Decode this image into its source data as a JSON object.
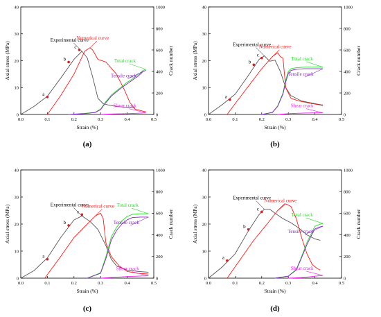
{
  "colors": {
    "experimental": "#555555",
    "numerical": "#ff1a1a",
    "total": "#22dd22",
    "tensile": "#8a22cc",
    "shear": "#ee22ee",
    "points": "#cc2222",
    "axis": "#000000"
  },
  "chart_data": [
    {
      "panel": "(a)",
      "type": "line",
      "xlabel": "Strain (%)",
      "ylabel": "Axial stress (MPa)",
      "y2label": "Crack number",
      "xlim": [
        0.0,
        0.5
      ],
      "ylim": [
        0,
        40
      ],
      "y2lim": [
        0,
        1000
      ],
      "xticks": [
        "0.0",
        "0.1",
        "0.2",
        "0.3",
        "0.4",
        "0.5"
      ],
      "yticks": [
        "0",
        "10",
        "20",
        "30",
        "40"
      ],
      "y2ticks": [
        "0",
        "200",
        "400",
        "600",
        "800",
        "1000"
      ],
      "series": [
        {
          "name": "Experimental curve",
          "axis": "left",
          "color_key": "experimental",
          "x": [
            0.0,
            0.05,
            0.1,
            0.15,
            0.2,
            0.23,
            0.25,
            0.27,
            0.29,
            0.31,
            0.33,
            0.36,
            0.4,
            0.43
          ],
          "y": [
            0.0,
            3.0,
            6.8,
            13.5,
            20.5,
            23.5,
            21.0,
            14.0,
            6.0,
            4.0,
            3.5,
            3.0,
            2.6,
            2.4
          ]
        },
        {
          "name": "Numerical curve",
          "axis": "left",
          "color_key": "numerical",
          "x": [
            0.1,
            0.15,
            0.2,
            0.24,
            0.26,
            0.27,
            0.29,
            0.32,
            0.36,
            0.39,
            0.41,
            0.43,
            0.46,
            0.47
          ],
          "y": [
            0.0,
            7.0,
            15.0,
            23.5,
            24.8,
            24.0,
            20.5,
            19.5,
            15.0,
            9.0,
            4.5,
            2.0,
            1.2,
            1.0
          ]
        },
        {
          "name": "Total crack",
          "axis": "right",
          "color_key": "total",
          "x": [
            0.18,
            0.24,
            0.28,
            0.3,
            0.32,
            0.34,
            0.36,
            0.38,
            0.4,
            0.42,
            0.44,
            0.46,
            0.47
          ],
          "y": [
            0,
            10,
            20,
            50,
            120,
            180,
            220,
            260,
            300,
            330,
            370,
            410,
            420
          ]
        },
        {
          "name": "Tensile crack",
          "axis": "right",
          "color_key": "tensile",
          "x": [
            0.18,
            0.24,
            0.28,
            0.3,
            0.32,
            0.34,
            0.36,
            0.38,
            0.4,
            0.42,
            0.44,
            0.46,
            0.47
          ],
          "y": [
            0,
            8,
            18,
            45,
            110,
            170,
            210,
            250,
            285,
            320,
            355,
            400,
            410
          ]
        },
        {
          "name": "Shear crack",
          "axis": "right",
          "color_key": "shear",
          "x": [
            0.3,
            0.35,
            0.4,
            0.45,
            0.47
          ],
          "y": [
            0,
            5,
            8,
            12,
            15
          ]
        }
      ],
      "points": [
        {
          "label": "a",
          "x": 0.1,
          "y": 6.5
        },
        {
          "label": "b",
          "x": 0.18,
          "y": 19.5
        },
        {
          "label": "c",
          "x": 0.22,
          "y": 24.0
        }
      ]
    },
    {
      "panel": "(b)",
      "type": "line",
      "xlabel": "Strain (%)",
      "ylabel": "Axial stress (MPa)",
      "y2label": "Crack number",
      "xlim": [
        0.0,
        0.5
      ],
      "ylim": [
        0,
        40
      ],
      "y2lim": [
        0,
        1000
      ],
      "xticks": [
        "0.0",
        "0.1",
        "0.2",
        "0.3",
        "0.4",
        "0.5"
      ],
      "yticks": [
        "0",
        "10",
        "20",
        "30",
        "40"
      ],
      "y2ticks": [
        "0",
        "200",
        "400",
        "600",
        "800",
        "1000"
      ],
      "series": [
        {
          "name": "Experimental curve",
          "axis": "left",
          "color_key": "experimental",
          "x": [
            0.0,
            0.05,
            0.1,
            0.15,
            0.19,
            0.21,
            0.23,
            0.25,
            0.27,
            0.29,
            0.31,
            0.35,
            0.4,
            0.43
          ],
          "y": [
            0.0,
            3.5,
            7.5,
            14.5,
            20.5,
            21.8,
            19.8,
            20.2,
            16.0,
            10.0,
            7.0,
            5.0,
            4.0,
            3.5
          ]
        },
        {
          "name": "Numerical curve",
          "axis": "left",
          "color_key": "numerical",
          "x": [
            0.07,
            0.1,
            0.15,
            0.2,
            0.24,
            0.26,
            0.27,
            0.28,
            0.29,
            0.31,
            0.34,
            0.38,
            0.42,
            0.43
          ],
          "y": [
            0.0,
            4.0,
            10.5,
            17.0,
            21.5,
            23.0,
            21.5,
            21.0,
            10.0,
            6.0,
            5.0,
            4.2,
            3.5,
            3.3
          ]
        },
        {
          "name": "Total crack",
          "axis": "right",
          "color_key": "total",
          "x": [
            0.2,
            0.24,
            0.26,
            0.28,
            0.29,
            0.3,
            0.31,
            0.33,
            0.36,
            0.4,
            0.43
          ],
          "y": [
            0,
            20,
            80,
            200,
            320,
            400,
            425,
            435,
            440,
            440,
            440
          ]
        },
        {
          "name": "Tensile crack",
          "axis": "right",
          "color_key": "tensile",
          "x": [
            0.2,
            0.24,
            0.26,
            0.28,
            0.29,
            0.3,
            0.31,
            0.33,
            0.36,
            0.4,
            0.43
          ],
          "y": [
            0,
            18,
            75,
            190,
            300,
            380,
            410,
            420,
            425,
            425,
            425
          ]
        },
        {
          "name": "Shear crack",
          "axis": "right",
          "color_key": "shear",
          "x": [
            0.26,
            0.3,
            0.35,
            0.4,
            0.43
          ],
          "y": [
            0,
            8,
            12,
            15,
            15
          ]
        }
      ],
      "points": [
        {
          "label": "a",
          "x": 0.08,
          "y": 5.5
        },
        {
          "label": "b",
          "x": 0.17,
          "y": 18.5
        },
        {
          "label": "c",
          "x": 0.2,
          "y": 21.0
        }
      ]
    },
    {
      "panel": "(c)",
      "type": "line",
      "xlabel": "Strain (%)",
      "ylabel": "Axial stress (MPa)",
      "y2label": "Crack number",
      "xlim": [
        0.0,
        0.5
      ],
      "ylim": [
        0,
        40
      ],
      "y2lim": [
        0,
        1000
      ],
      "xticks": [
        "0.0",
        "0.1",
        "0.2",
        "0.3",
        "0.4",
        "0.5"
      ],
      "yticks": [
        "0",
        "10",
        "20",
        "30",
        "40"
      ],
      "y2ticks": [
        "0",
        "200",
        "400",
        "600",
        "800",
        "1000"
      ],
      "series": [
        {
          "name": "Experimental curve",
          "axis": "left",
          "color_key": "experimental",
          "x": [
            0.0,
            0.05,
            0.1,
            0.15,
            0.2,
            0.23,
            0.26,
            0.29,
            0.32,
            0.34,
            0.36,
            0.4,
            0.44,
            0.48
          ],
          "y": [
            0.0,
            2.8,
            7.5,
            15.0,
            21.5,
            23.0,
            21.0,
            18.0,
            12.0,
            7.0,
            4.5,
            3.0,
            2.5,
            2.2
          ]
        },
        {
          "name": "Numerical curve",
          "axis": "left",
          "color_key": "numerical",
          "x": [
            0.09,
            0.15,
            0.2,
            0.25,
            0.28,
            0.3,
            0.31,
            0.32,
            0.34,
            0.37,
            0.4,
            0.44,
            0.48
          ],
          "y": [
            0.0,
            8.0,
            15.0,
            20.0,
            23.0,
            24.0,
            22.0,
            13.0,
            8.0,
            4.5,
            2.5,
            1.8,
            1.5
          ]
        },
        {
          "name": "Total crack",
          "axis": "right",
          "color_key": "total",
          "x": [
            0.25,
            0.3,
            0.32,
            0.34,
            0.36,
            0.38,
            0.4,
            0.42,
            0.45,
            0.48
          ],
          "y": [
            0,
            50,
            200,
            380,
            470,
            530,
            570,
            590,
            595,
            595
          ]
        },
        {
          "name": "Tensile crack",
          "axis": "right",
          "color_key": "tensile",
          "x": [
            0.25,
            0.3,
            0.32,
            0.34,
            0.36,
            0.38,
            0.4,
            0.42,
            0.45,
            0.48
          ],
          "y": [
            0,
            45,
            180,
            350,
            440,
            500,
            540,
            560,
            565,
            565
          ]
        },
        {
          "name": "Shear crack",
          "axis": "right",
          "color_key": "shear",
          "x": [
            0.3,
            0.35,
            0.4,
            0.45,
            0.48
          ],
          "y": [
            0,
            8,
            15,
            20,
            22
          ]
        }
      ],
      "points": [
        {
          "label": "a",
          "x": 0.1,
          "y": 7.0
        },
        {
          "label": "b",
          "x": 0.18,
          "y": 19.5
        },
        {
          "label": "c",
          "x": 0.23,
          "y": 23.5
        }
      ]
    },
    {
      "panel": "(d)",
      "type": "line",
      "xlabel": "Strain (%)",
      "ylabel": "Axial stress (MPa)",
      "y2label": "Crack number",
      "xlim": [
        0.0,
        0.5
      ],
      "ylim": [
        0,
        40
      ],
      "y2lim": [
        0,
        1000
      ],
      "xticks": [
        "0.0",
        "0.1",
        "0.2",
        "0.3",
        "0.4",
        "0.5"
      ],
      "yticks": [
        "0",
        "10",
        "20",
        "30",
        "40"
      ],
      "y2ticks": [
        "0",
        "200",
        "400",
        "600",
        "800",
        "1000"
      ],
      "series": [
        {
          "name": "Experimental curve",
          "axis": "left",
          "color_key": "experimental",
          "x": [
            0.0,
            0.05,
            0.1,
            0.15,
            0.19,
            0.21,
            0.23,
            0.25,
            0.28,
            0.31,
            0.34,
            0.37,
            0.4,
            0.42
          ],
          "y": [
            0.0,
            4.0,
            9.0,
            17.5,
            23.5,
            25.5,
            25.5,
            24.0,
            22.0,
            20.5,
            18.5,
            16.0,
            14.5,
            14.0
          ]
        },
        {
          "name": "Numerical curve",
          "axis": "left",
          "color_key": "numerical",
          "x": [
            0.07,
            0.12,
            0.17,
            0.22,
            0.26,
            0.29,
            0.31,
            0.33,
            0.35,
            0.37,
            0.39,
            0.41,
            0.42
          ],
          "y": [
            0.0,
            7.0,
            14.0,
            20.0,
            25.0,
            27.5,
            26.5,
            22.0,
            15.0,
            9.0,
            5.0,
            3.5,
            3.0
          ]
        },
        {
          "name": "Total crack",
          "axis": "right",
          "color_key": "total",
          "x": [
            0.25,
            0.3,
            0.33,
            0.35,
            0.37,
            0.39,
            0.4,
            0.42,
            0.43
          ],
          "y": [
            0,
            20,
            80,
            200,
            330,
            430,
            480,
            500,
            505
          ]
        },
        {
          "name": "Tensile crack",
          "axis": "right",
          "color_key": "tensile",
          "x": [
            0.25,
            0.3,
            0.33,
            0.35,
            0.37,
            0.39,
            0.4,
            0.42,
            0.43
          ],
          "y": [
            0,
            18,
            75,
            190,
            310,
            410,
            455,
            475,
            480
          ]
        },
        {
          "name": "Shear crack",
          "axis": "right",
          "color_key": "shear",
          "x": [
            0.3,
            0.35,
            0.38,
            0.4,
            0.43
          ],
          "y": [
            0,
            5,
            12,
            18,
            25
          ]
        }
      ],
      "points": [
        {
          "label": "a",
          "x": 0.07,
          "y": 6.5
        },
        {
          "label": "b",
          "x": 0.15,
          "y": 18.0
        },
        {
          "label": "c",
          "x": 0.2,
          "y": 24.5
        }
      ]
    }
  ]
}
